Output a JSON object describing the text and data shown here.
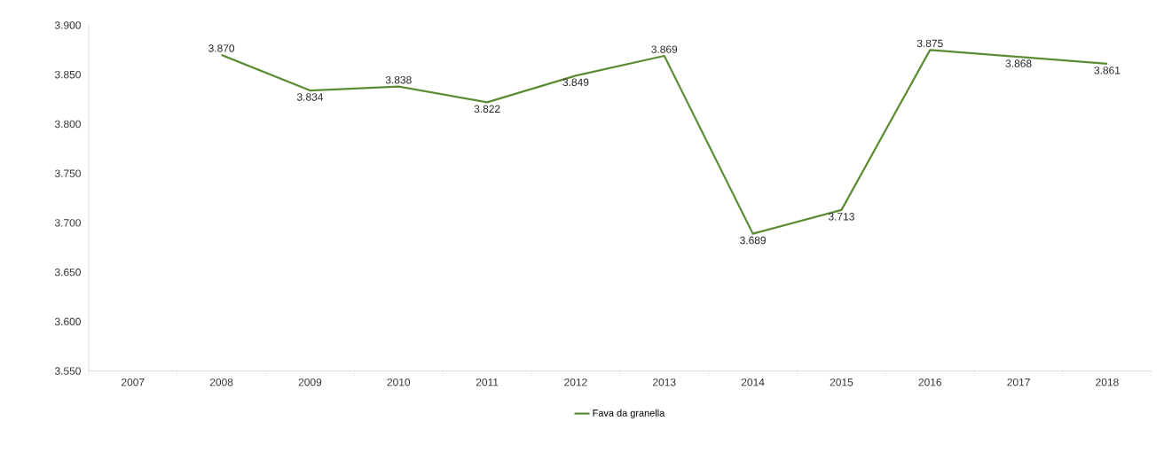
{
  "chart_data": {
    "type": "line",
    "categories": [
      "2007",
      "2008",
      "2009",
      "2010",
      "2011",
      "2012",
      "2013",
      "2014",
      "2015",
      "2016",
      "2017",
      "2018"
    ],
    "series": [
      {
        "name": "Fava da granella",
        "color": "#5b8c32",
        "values": [
          null,
          3870,
          3834,
          3838,
          3822,
          3849,
          3869,
          3689,
          3713,
          3875,
          3868,
          3861
        ],
        "value_labels": [
          null,
          "3.870",
          "3.834",
          "3.838",
          "3.822",
          "3.849",
          "3.869",
          "3.689",
          "3.713",
          "3.875",
          "3.868",
          "3.861"
        ]
      }
    ],
    "ylim": [
      3550,
      3900
    ],
    "yticks": [
      {
        "value": 3550,
        "label": "3.550"
      },
      {
        "value": 3600,
        "label": "3.600"
      },
      {
        "value": 3650,
        "label": "3.650"
      },
      {
        "value": 3700,
        "label": "3.700"
      },
      {
        "value": 3750,
        "label": "3.750"
      },
      {
        "value": 3800,
        "label": "3.800"
      },
      {
        "value": 3850,
        "label": "3.850"
      },
      {
        "value": 3900,
        "label": "3.900"
      }
    ],
    "legend": "bottom"
  }
}
